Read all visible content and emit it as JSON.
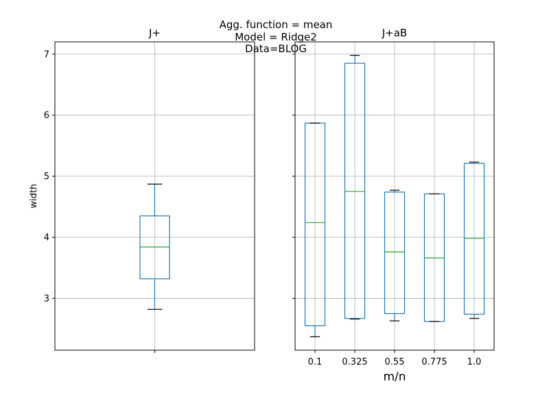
{
  "suptitle": [
    "Agg. function = mean",
    "Model = Ridge2",
    "Data=BLOG"
  ],
  "colors": {
    "box": "#1f77b4",
    "median": "#2ca02c",
    "whisker": "#1f77b4",
    "cap": "#000000",
    "grid": "#b0b0b0"
  },
  "chart_data": [
    {
      "type": "box",
      "title": "J+",
      "ylabel": "width",
      "xlabel": "",
      "ylim": [
        2.15,
        7.2
      ],
      "yticks": [
        3,
        4,
        5,
        6,
        7
      ],
      "grid": true,
      "categories": [
        ""
      ],
      "boxes": [
        {
          "whislo": 2.82,
          "q1": 3.32,
          "med": 3.84,
          "q3": 4.35,
          "whishi": 4.87
        }
      ]
    },
    {
      "type": "box",
      "title": "J+aB",
      "ylabel": "",
      "xlabel": "m/n",
      "ylim": [
        2.15,
        7.2
      ],
      "yticks": [
        3,
        4,
        5,
        6,
        7
      ],
      "grid": true,
      "categories": [
        "0.1",
        "0.325",
        "0.55",
        "0.775",
        "1.0"
      ],
      "boxes": [
        {
          "whislo": 2.37,
          "q1": 2.55,
          "med": 4.24,
          "q3": 5.87,
          "whishi": 5.87
        },
        {
          "whislo": 2.66,
          "q1": 2.67,
          "med": 4.75,
          "q3": 6.85,
          "whishi": 6.98
        },
        {
          "whislo": 2.63,
          "q1": 2.75,
          "med": 3.76,
          "q3": 4.74,
          "whishi": 4.77
        },
        {
          "whislo": 2.62,
          "q1": 2.62,
          "med": 3.66,
          "q3": 4.71,
          "whishi": 4.71
        },
        {
          "whislo": 2.67,
          "q1": 2.74,
          "med": 3.98,
          "q3": 5.21,
          "whishi": 5.23
        }
      ]
    }
  ]
}
